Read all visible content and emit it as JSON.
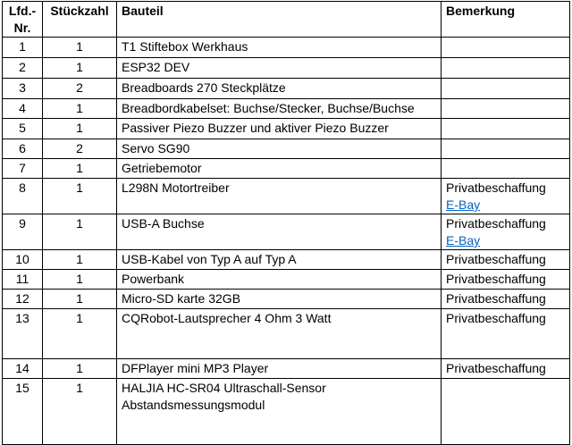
{
  "headers": {
    "nr": "Lfd.-Nr.",
    "qty": "Stückzahl",
    "part": "Bauteil",
    "note": "Bemerkung"
  },
  "rows": [
    {
      "nr": "1",
      "qty": "1",
      "part": "T1 Stiftebox Werkhaus",
      "note": "",
      "link": ""
    },
    {
      "nr": "2",
      "qty": "1",
      "part": "ESP32 DEV",
      "note": "",
      "link": ""
    },
    {
      "nr": "3",
      "qty": "2",
      "part": "Breadboards 270 Steckplätze",
      "note": "",
      "link": ""
    },
    {
      "nr": "4",
      "qty": "1",
      "part": "Breadbordkabelset: Buchse/Stecker, Buchse/Buchse",
      "note": "",
      "link": ""
    },
    {
      "nr": "5",
      "qty": "1",
      "part": "Passiver Piezo Buzzer und aktiver Piezo Buzzer",
      "note": "",
      "link": ""
    },
    {
      "nr": "6",
      "qty": "2",
      "part": "Servo SG90",
      "note": "",
      "link": ""
    },
    {
      "nr": "7",
      "qty": "1",
      "part": "Getriebemotor",
      "note": "",
      "link": ""
    },
    {
      "nr": "8",
      "qty": "1",
      "part": "L298N Motortreiber",
      "note": "Privatbeschaffung",
      "link": "E-Bay"
    },
    {
      "nr": "9",
      "qty": "1",
      "part": "USB-A Buchse",
      "note": "Privatbeschaffung",
      "link": "E-Bay"
    },
    {
      "nr": "10",
      "qty": "1",
      "part": "USB-Kabel von Typ A auf Typ A",
      "note": "Privatbeschaffung",
      "link": ""
    },
    {
      "nr": "11",
      "qty": "1",
      "part": "Powerbank",
      "note": "Privatbeschaffung",
      "link": ""
    },
    {
      "nr": "12",
      "qty": "1",
      "part": "Micro-SD karte 32GB",
      "note": "Privatbeschaffung",
      "link": ""
    },
    {
      "nr": "13",
      "qty": "1",
      "part": "CQRobot-Lautsprecher 4 Ohm 3 Watt",
      "note": "Privatbeschaffung",
      "link": ""
    },
    {
      "nr": "14",
      "qty": "1",
      "part": "DFPlayer mini MP3 Player",
      "note": "Privatbeschaffung",
      "link": ""
    },
    {
      "nr": "15",
      "qty": "1",
      "part": "HALJIA HC-SR04 Ultraschall-Sensor Abstandsmessungsmodul",
      "note": "",
      "link": ""
    }
  ],
  "link_color": "#0563c1"
}
